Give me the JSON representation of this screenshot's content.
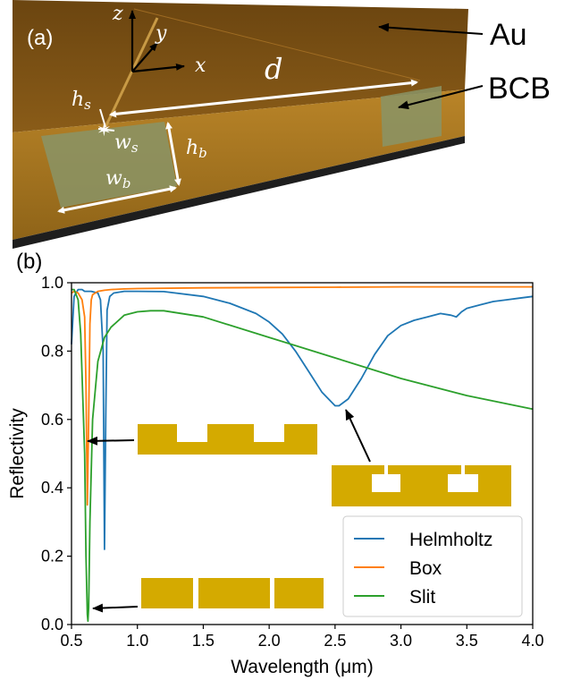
{
  "panel_a": {
    "label": "(a)",
    "annotations": {
      "au": "Au",
      "bcb": "BCB"
    },
    "axes": {
      "x": "x",
      "y": "y",
      "z": "z"
    },
    "dims": {
      "d": "d",
      "hs": "h",
      "hs_sub": "s",
      "ws": "w",
      "ws_sub": "s",
      "hb": "h",
      "hb_sub": "b",
      "wb": "w",
      "wb_sub": "b"
    },
    "colors": {
      "gold_top": "#7a4f12",
      "gold_side": "#b07a22",
      "bcb": "#8a9466",
      "base": "#1e1e1e"
    }
  },
  "panel_b": {
    "label": "(b)"
  },
  "chart_data": {
    "type": "line",
    "xlabel": "Wavelength (μm)",
    "ylabel": "Reflectivity",
    "xlim": [
      0.5,
      4.0
    ],
    "ylim": [
      0.0,
      1.0
    ],
    "xticks": [
      "0.5",
      "1.0",
      "1.5",
      "2.0",
      "2.5",
      "3.0",
      "3.5",
      "4.0"
    ],
    "yticks": [
      "0.0",
      "0.2",
      "0.4",
      "0.6",
      "0.8",
      "1.0"
    ],
    "legend_position": "bottom-right",
    "series": [
      {
        "name": "Helmholtz",
        "color": "#1f77b4",
        "x": [
          0.5,
          0.52,
          0.55,
          0.58,
          0.6,
          0.65,
          0.7,
          0.72,
          0.74,
          0.75,
          0.76,
          0.77,
          0.79,
          0.82,
          0.9,
          1.0,
          1.2,
          1.5,
          1.7,
          1.9,
          2.0,
          2.1,
          2.2,
          2.3,
          2.4,
          2.5,
          2.53,
          2.6,
          2.7,
          2.8,
          2.9,
          3.0,
          3.1,
          3.2,
          3.3,
          3.38,
          3.42,
          3.46,
          3.5,
          3.6,
          3.7,
          3.8,
          3.9,
          4.0
        ],
        "y": [
          0.82,
          0.96,
          0.98,
          0.98,
          0.975,
          0.975,
          0.97,
          0.95,
          0.8,
          0.22,
          0.6,
          0.92,
          0.96,
          0.97,
          0.975,
          0.975,
          0.974,
          0.96,
          0.94,
          0.91,
          0.885,
          0.85,
          0.8,
          0.74,
          0.68,
          0.64,
          0.64,
          0.66,
          0.72,
          0.79,
          0.845,
          0.875,
          0.89,
          0.9,
          0.91,
          0.905,
          0.9,
          0.915,
          0.925,
          0.935,
          0.945,
          0.95,
          0.955,
          0.96
        ]
      },
      {
        "name": "Box",
        "color": "#ff7f0e",
        "x": [
          0.5,
          0.52,
          0.55,
          0.58,
          0.6,
          0.61,
          0.62,
          0.63,
          0.64,
          0.65,
          0.66,
          0.68,
          0.7,
          0.75,
          0.8,
          0.9,
          1.0,
          1.5,
          2.0,
          2.5,
          3.0,
          3.5,
          4.0
        ],
        "y": [
          0.97,
          0.975,
          0.97,
          0.95,
          0.9,
          0.7,
          0.35,
          0.6,
          0.88,
          0.95,
          0.965,
          0.97,
          0.975,
          0.978,
          0.98,
          0.982,
          0.983,
          0.985,
          0.986,
          0.987,
          0.988,
          0.988,
          0.988
        ]
      },
      {
        "name": "Slit",
        "color": "#2ca02c",
        "x": [
          0.5,
          0.52,
          0.55,
          0.57,
          0.6,
          0.61,
          0.62,
          0.625,
          0.63,
          0.64,
          0.66,
          0.7,
          0.75,
          0.8,
          0.9,
          1.0,
          1.1,
          1.2,
          1.5,
          2.0,
          2.5,
          3.0,
          3.5,
          4.0
        ],
        "y": [
          0.98,
          0.98,
          0.95,
          0.85,
          0.5,
          0.2,
          0.03,
          0.01,
          0.05,
          0.3,
          0.6,
          0.77,
          0.84,
          0.87,
          0.905,
          0.915,
          0.918,
          0.918,
          0.9,
          0.84,
          0.78,
          0.72,
          0.67,
          0.63
        ]
      }
    ],
    "annotations": [
      {
        "target": "Box",
        "x": 0.62,
        "y": 0.54
      },
      {
        "target": "Helmholtz",
        "x": 2.53,
        "y": 0.64
      },
      {
        "target": "Slit",
        "x": 0.62,
        "y": 0.06
      }
    ]
  }
}
